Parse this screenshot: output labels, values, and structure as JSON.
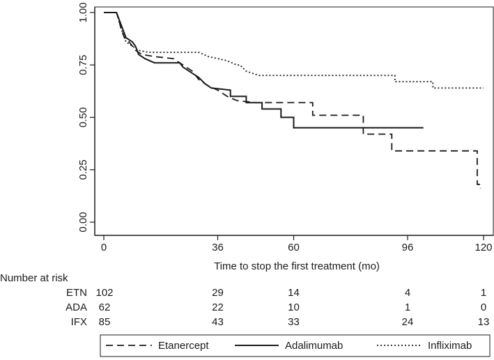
{
  "chart_data": {
    "type": "line",
    "subtype": "kaplan-meier step",
    "title": "",
    "xlabel": "Time to stop the first treatment (mo)",
    "ylabel": "",
    "xlim": [
      0,
      120
    ],
    "ylim": [
      0,
      1
    ],
    "x_ticks": [
      0,
      36,
      60,
      96,
      120
    ],
    "x_tick_labels": [
      "0",
      "36",
      "60",
      "96",
      "120"
    ],
    "y_ticks": [
      0,
      0.25,
      0.5,
      0.75,
      1
    ],
    "y_tick_labels": [
      "0.00",
      "0.25",
      "0.50",
      "0.75",
      "1.00"
    ],
    "grid": false,
    "legend_position": "bottom",
    "series": [
      {
        "name": "Etanercept",
        "dash": "dashed",
        "points": [
          [
            0,
            1.0
          ],
          [
            4,
            1.0
          ],
          [
            4.8,
            0.96
          ],
          [
            5.5,
            0.92
          ],
          [
            6.5,
            0.88
          ],
          [
            8,
            0.86
          ],
          [
            10,
            0.82
          ],
          [
            12,
            0.8
          ],
          [
            16,
            0.79
          ],
          [
            22,
            0.78
          ],
          [
            26,
            0.74
          ],
          [
            28,
            0.72
          ],
          [
            30,
            0.68
          ],
          [
            33,
            0.65
          ],
          [
            36,
            0.63
          ],
          [
            39,
            0.6
          ],
          [
            42,
            0.58
          ],
          [
            48,
            0.57
          ],
          [
            66,
            0.57
          ],
          [
            66,
            0.51
          ],
          [
            82,
            0.51
          ],
          [
            82,
            0.42
          ],
          [
            91,
            0.42
          ],
          [
            91,
            0.34
          ],
          [
            118,
            0.34
          ],
          [
            118,
            0.18
          ],
          [
            119,
            0.18
          ],
          [
            119,
            0.16
          ]
        ]
      },
      {
        "name": "Adalimumab",
        "dash": "solid",
        "points": [
          [
            0,
            1.0
          ],
          [
            4,
            1.0
          ],
          [
            5,
            0.96
          ],
          [
            6,
            0.92
          ],
          [
            7,
            0.88
          ],
          [
            9,
            0.86
          ],
          [
            10,
            0.84
          ],
          [
            11,
            0.8
          ],
          [
            13,
            0.78
          ],
          [
            16,
            0.76
          ],
          [
            24,
            0.76
          ],
          [
            25,
            0.74
          ],
          [
            28,
            0.71
          ],
          [
            30,
            0.69
          ],
          [
            32,
            0.66
          ],
          [
            34,
            0.64
          ],
          [
            40,
            0.63
          ],
          [
            40,
            0.6
          ],
          [
            45,
            0.6
          ],
          [
            45,
            0.57
          ],
          [
            50,
            0.57
          ],
          [
            50,
            0.54
          ],
          [
            56,
            0.54
          ],
          [
            56,
            0.5
          ],
          [
            60,
            0.5
          ],
          [
            60,
            0.45
          ],
          [
            101,
            0.45
          ]
        ]
      },
      {
        "name": "Infliximab",
        "dash": "dotted",
        "points": [
          [
            0,
            1.0
          ],
          [
            4,
            1.0
          ],
          [
            5,
            0.95
          ],
          [
            6,
            0.9
          ],
          [
            7,
            0.86
          ],
          [
            9,
            0.84
          ],
          [
            11,
            0.82
          ],
          [
            14,
            0.81
          ],
          [
            30,
            0.81
          ],
          [
            33,
            0.79
          ],
          [
            39,
            0.77
          ],
          [
            42,
            0.75
          ],
          [
            43,
            0.75
          ],
          [
            45,
            0.72
          ],
          [
            49,
            0.7
          ],
          [
            92,
            0.7
          ],
          [
            92,
            0.67
          ],
          [
            104,
            0.67
          ],
          [
            104,
            0.64
          ],
          [
            120,
            0.64
          ]
        ]
      }
    ],
    "risk_table": {
      "title": "Number at risk",
      "times": [
        0,
        36,
        60,
        96,
        120
      ],
      "rows": [
        {
          "label": "ETN",
          "counts": [
            "102",
            "29",
            "14",
            "4",
            "1"
          ]
        },
        {
          "label": "ADA",
          "counts": [
            "62",
            "22",
            "10",
            "1",
            "0"
          ]
        },
        {
          "label": "IFX",
          "counts": [
            "85",
            "43",
            "33",
            "24",
            "13"
          ]
        }
      ]
    },
    "legend": [
      {
        "name": "Etanercept",
        "dash": "dashed"
      },
      {
        "name": "Adalimumab",
        "dash": "solid"
      },
      {
        "name": "Infliximab",
        "dash": "dotted"
      }
    ]
  }
}
